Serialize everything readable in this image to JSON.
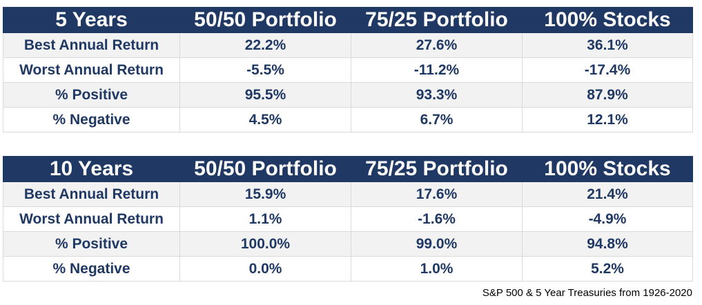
{
  "chart_data": [
    {
      "type": "table",
      "columns": [
        "5 Years",
        "50/50 Portfolio",
        "75/25 Portfolio",
        "100% Stocks"
      ],
      "rows": [
        {
          "label": "Best Annual Return",
          "values": [
            "22.2%",
            "27.6%",
            "36.1%"
          ]
        },
        {
          "label": "Worst Annual Return",
          "values": [
            "-5.5%",
            "-11.2%",
            "-17.4%"
          ]
        },
        {
          "label": "% Positive",
          "values": [
            "95.5%",
            "93.3%",
            "87.9%"
          ]
        },
        {
          "label": "% Negative",
          "values": [
            "4.5%",
            "6.7%",
            "12.1%"
          ]
        }
      ]
    },
    {
      "type": "table",
      "columns": [
        "10 Years",
        "50/50 Portfolio",
        "75/25 Portfolio",
        "100% Stocks"
      ],
      "rows": [
        {
          "label": "Best Annual Return",
          "values": [
            "15.9%",
            "17.6%",
            "21.4%"
          ]
        },
        {
          "label": "Worst Annual Return",
          "values": [
            "1.1%",
            "-1.6%",
            "-4.9%"
          ]
        },
        {
          "label": "% Positive",
          "values": [
            "100.0%",
            "99.0%",
            "94.8%"
          ]
        },
        {
          "label": "% Negative",
          "values": [
            "0.0%",
            "1.0%",
            "5.2%"
          ]
        }
      ]
    }
  ],
  "source_note": "S&P 500 & 5 Year Treasuries from 1926-2020",
  "colors": {
    "header_bg": "#1f3864",
    "header_text": "#ffffff",
    "body_text": "#1f3864",
    "row_shade": "#f2f2f2",
    "grid": "#d9d9d9"
  }
}
